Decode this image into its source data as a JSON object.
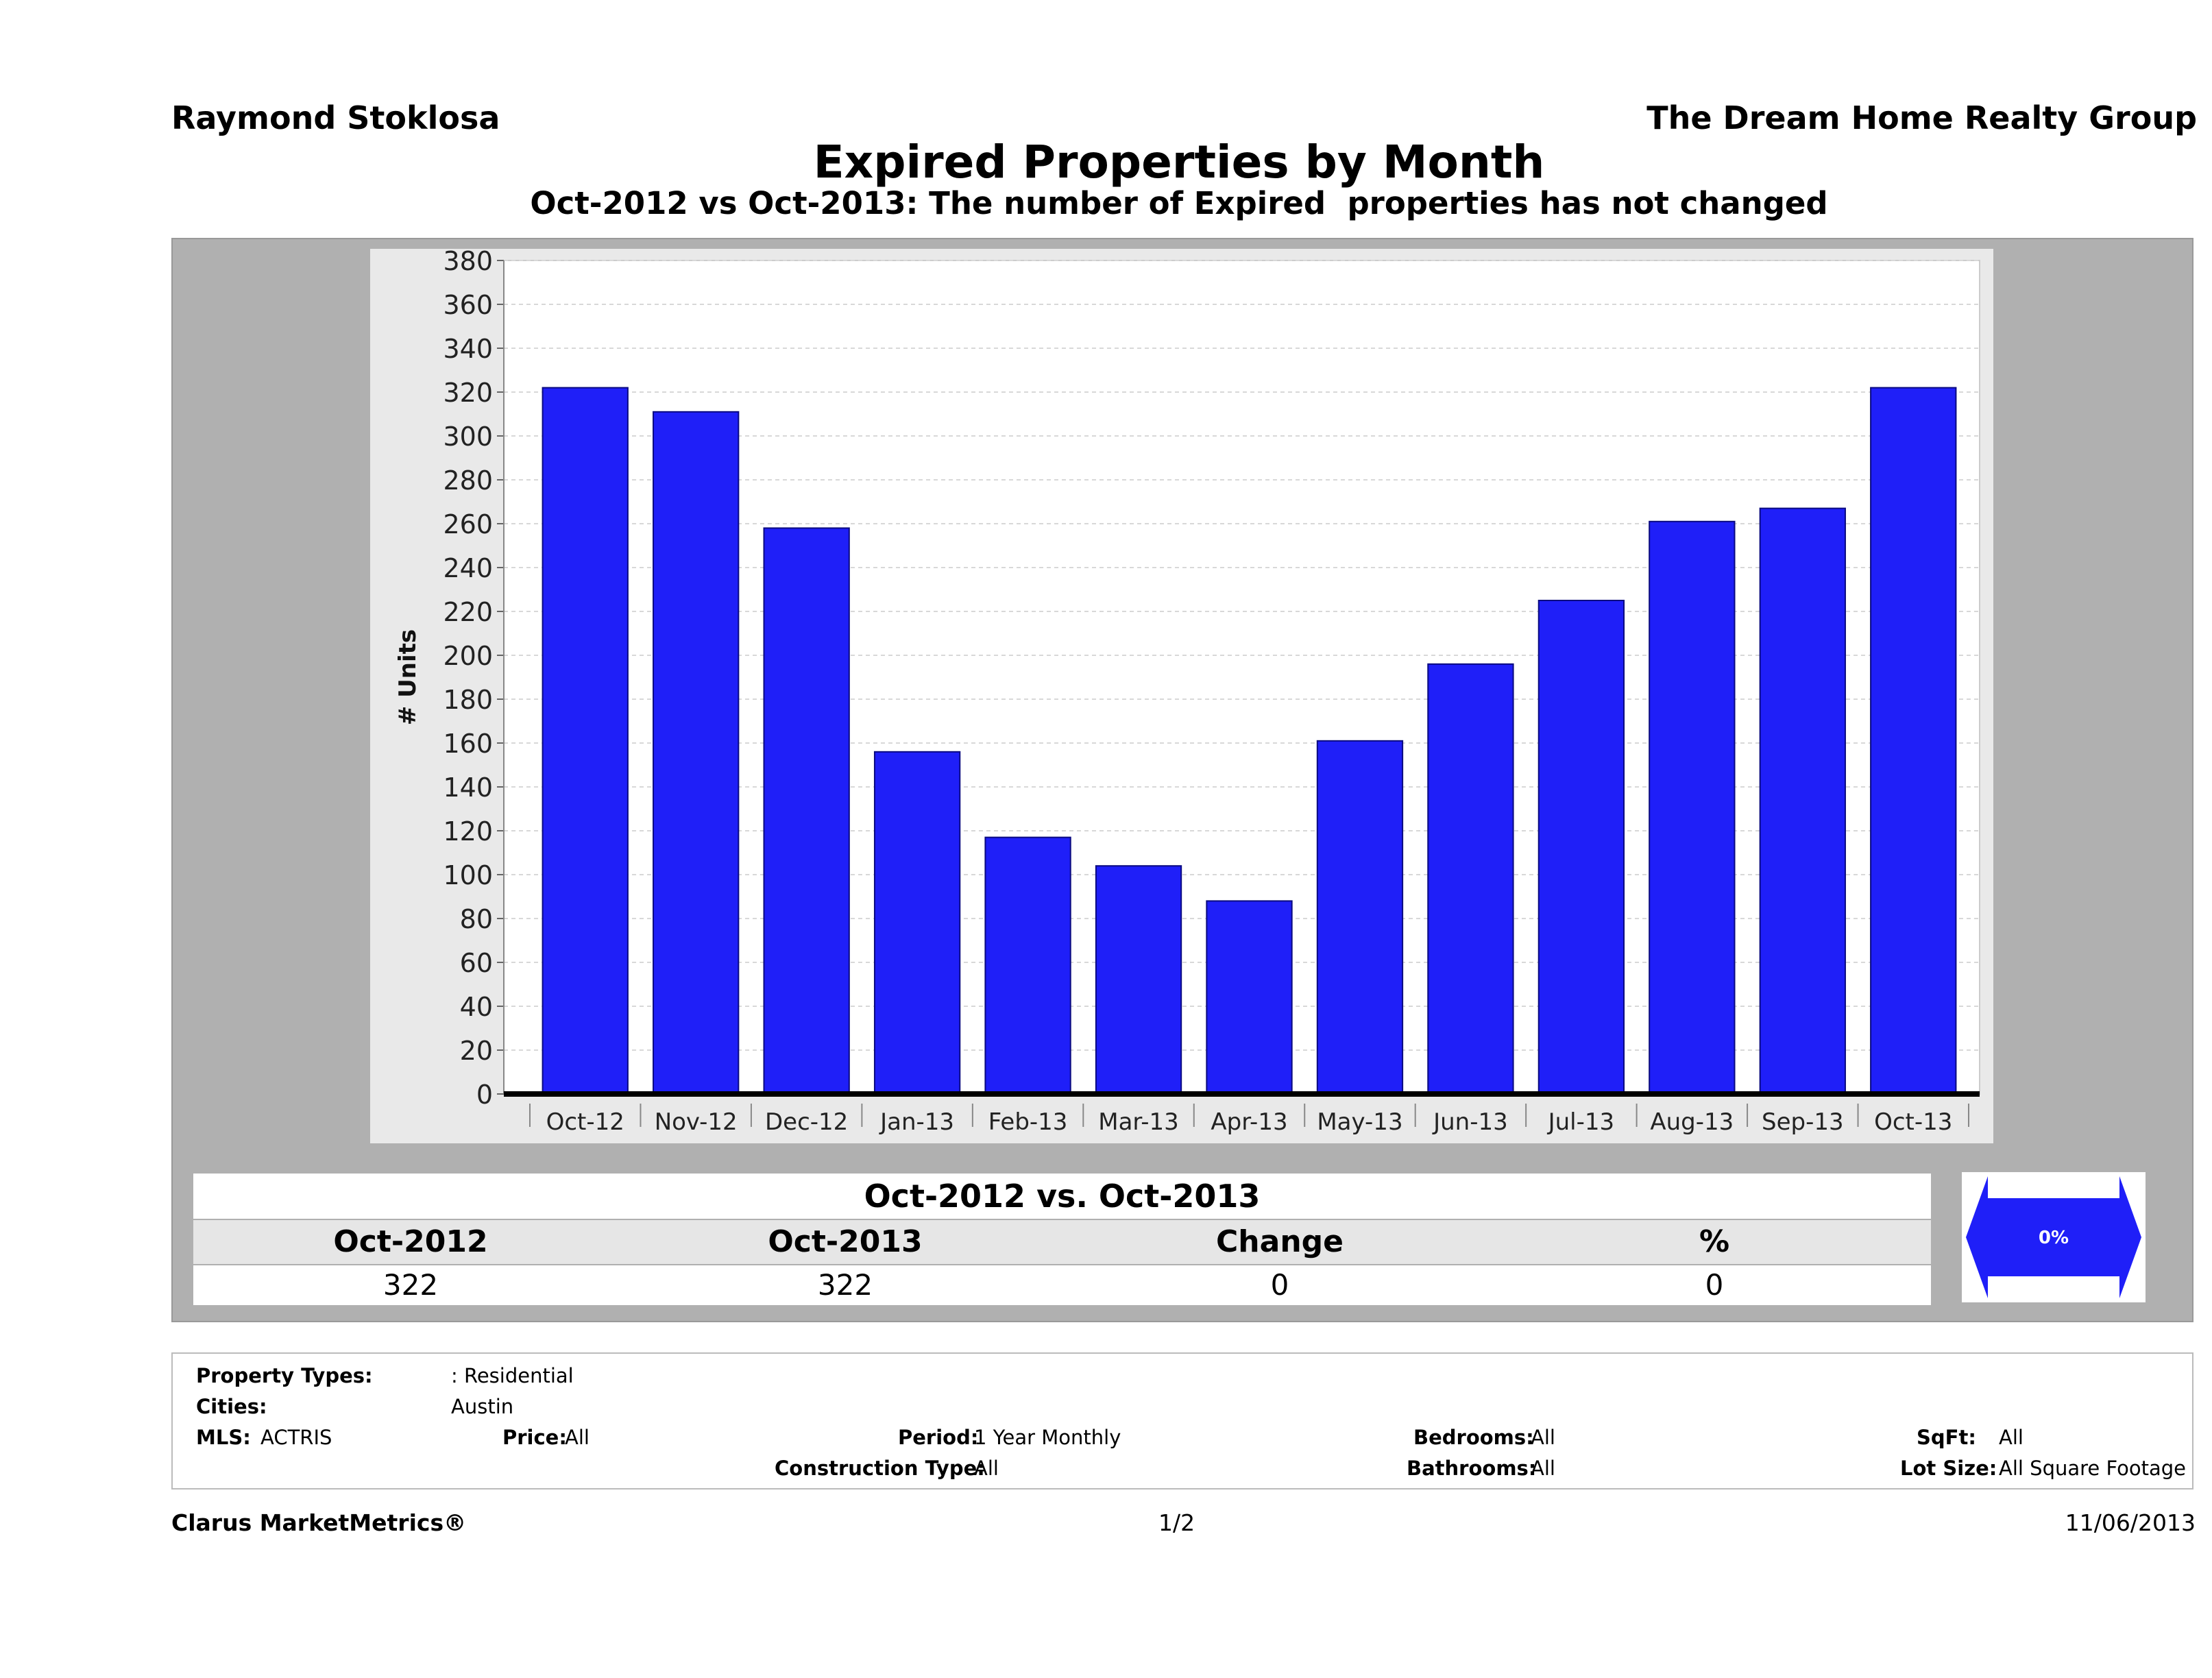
{
  "header": {
    "agent_name": "Raymond Stoklosa",
    "company_name": "The Dream Home Realty Group",
    "title": "Expired Properties by Month",
    "subtitle": "Oct-2012 vs Oct-2013: The number of Expired  properties has not changed"
  },
  "chart_data": {
    "type": "bar",
    "categories": [
      "Oct-12",
      "Nov-12",
      "Dec-12",
      "Jan-13",
      "Feb-13",
      "Mar-13",
      "Apr-13",
      "May-13",
      "Jun-13",
      "Jul-13",
      "Aug-13",
      "Sep-13",
      "Oct-13"
    ],
    "values": [
      322,
      311,
      258,
      156,
      117,
      104,
      88,
      161,
      196,
      225,
      261,
      267,
      322
    ],
    "xlabel": "",
    "ylabel": "# Units",
    "ylim": [
      0,
      380
    ],
    "yticks": [
      0,
      20,
      40,
      60,
      80,
      100,
      120,
      140,
      160,
      180,
      200,
      220,
      240,
      260,
      280,
      300,
      320,
      340,
      360,
      380
    ],
    "grid": true,
    "bar_color": "#1f1ff8",
    "legend": "none"
  },
  "summary": {
    "title": "Oct-2012 vs. Oct-2013",
    "headers": [
      "Oct-2012",
      "Oct-2013",
      "Change",
      "%"
    ],
    "values": [
      "322",
      "322",
      "0",
      "0"
    ],
    "indicator": "0%",
    "indicator_color": "#1f1ff8"
  },
  "filters": {
    "property_types_label": "Property Types:",
    "property_types_value": ": Residential",
    "cities_label": "Cities:",
    "cities_value": "Austin",
    "mls_label": "MLS:",
    "mls_value": "ACTRIS",
    "price_label": "Price:",
    "price_value": "All",
    "period_label": "Period:",
    "period_value": "1 Year Monthly",
    "construction_label": "Construction Type:",
    "construction_value": "All",
    "bedrooms_label": "Bedrooms:",
    "bedrooms_value": "All",
    "bathrooms_label": "Bathrooms:",
    "bathrooms_value": "All",
    "sqft_label": "SqFt:",
    "sqft_value": "All",
    "lotsize_label": "Lot Size:",
    "lotsize_value": "All Square Footage"
  },
  "footer": {
    "brand": "Clarus MarketMetrics®",
    "page": "1/2",
    "date": "11/06/2013"
  }
}
